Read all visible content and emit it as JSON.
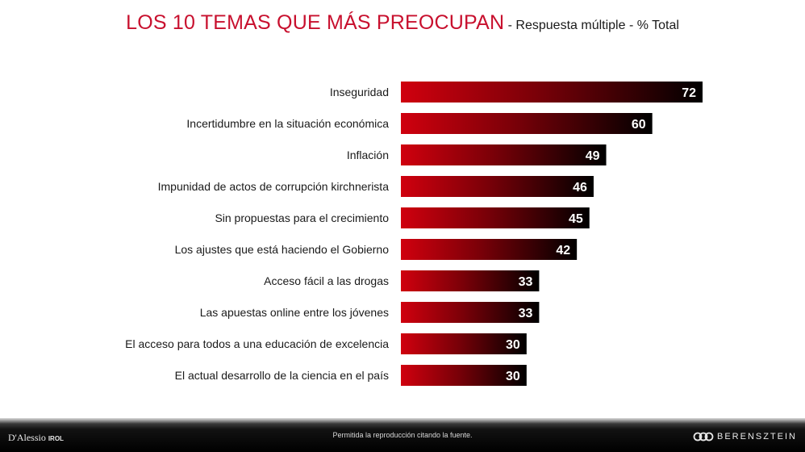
{
  "header": {
    "title": "LOS 10 TEMAS QUE MÁS PREOCUPAN",
    "subtitle": " - Respuesta múltiple - % Total"
  },
  "chart_data": {
    "type": "bar",
    "orientation": "horizontal",
    "title": "LOS 10 TEMAS QUE MÁS PREOCUPAN",
    "subtitle": "Respuesta múltiple - % Total",
    "categories": [
      "Inseguridad",
      "Incertidumbre en la situación económica",
      "Inflación",
      "Impunidad de actos de corrupción kirchnerista",
      "Sin propuestas para el crecimiento",
      "Los ajustes que está haciendo el Gobierno",
      "Acceso fácil a las drogas",
      "Las apuestas online entre los jóvenes",
      "El acceso para todos a una educación de excelencia",
      "El actual desarrollo de la ciencia en el país"
    ],
    "values": [
      72,
      60,
      49,
      46,
      45,
      42,
      33,
      33,
      30,
      30
    ],
    "colors": {
      "start": "#d0000e",
      "mid": "#7a0008",
      "end": "#000000",
      "label": "#ffffff"
    },
    "xlim": [
      0,
      72
    ],
    "grid": false,
    "legend": "none"
  },
  "footer": {
    "notice": "Permitida la reproducción citando la fuente.",
    "left_logo": "D'Alessio",
    "left_logo_sub": "IROL",
    "right_logo": "BERENSZTEIN"
  }
}
